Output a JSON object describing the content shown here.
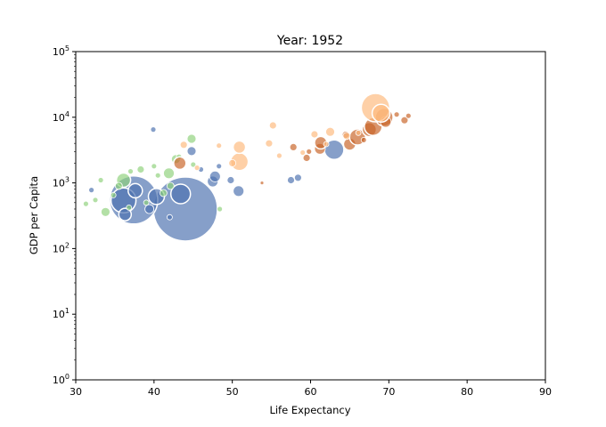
{
  "chart_data": {
    "type": "scatter",
    "title": "Year: 1952",
    "xlabel": "Life Expectancy",
    "ylabel": "GDP per Capita",
    "xlim": [
      30,
      90
    ],
    "ylim": [
      1,
      100000
    ],
    "yscale": "log",
    "grid": false,
    "legend": "none",
    "x_ticks": [
      "30",
      "40",
      "50",
      "60",
      "70",
      "80",
      "90"
    ],
    "y_ticks": [
      {
        "base": "10",
        "exp": "0"
      },
      {
        "base": "10",
        "exp": "1"
      },
      {
        "base": "10",
        "exp": "2"
      },
      {
        "base": "10",
        "exp": "3"
      },
      {
        "base": "10",
        "exp": "4"
      },
      {
        "base": "10",
        "exp": "5"
      }
    ],
    "colors": {
      "Asia": "#4c72b0",
      "Africa": "#8fd17c",
      "Europe": "#c86428",
      "Americas": "#fdb97d"
    },
    "points": [
      {
        "x": 44.0,
        "y": 400,
        "r": 36,
        "group": "Asia"
      },
      {
        "x": 37.4,
        "y": 550,
        "r": 27,
        "group": "Asia"
      },
      {
        "x": 36.1,
        "y": 540,
        "r": 14,
        "group": "Asia"
      },
      {
        "x": 37.6,
        "y": 760,
        "r": 8,
        "group": "Asia"
      },
      {
        "x": 36.3,
        "y": 330,
        "r": 7,
        "group": "Asia"
      },
      {
        "x": 40.3,
        "y": 620,
        "r": 9,
        "group": "Asia"
      },
      {
        "x": 43.4,
        "y": 680,
        "r": 11,
        "group": "Asia"
      },
      {
        "x": 39.4,
        "y": 400,
        "r": 5,
        "group": "Asia"
      },
      {
        "x": 47.5,
        "y": 1050,
        "r": 6,
        "group": "Asia"
      },
      {
        "x": 47.8,
        "y": 1250,
        "r": 6,
        "group": "Asia"
      },
      {
        "x": 50.8,
        "y": 750,
        "r": 6,
        "group": "Asia"
      },
      {
        "x": 44.8,
        "y": 3050,
        "r": 5,
        "group": "Asia"
      },
      {
        "x": 49.8,
        "y": 1100,
        "r": 4,
        "group": "Asia"
      },
      {
        "x": 63.0,
        "y": 3200,
        "r": 11,
        "group": "Asia"
      },
      {
        "x": 57.5,
        "y": 1100,
        "r": 4,
        "group": "Asia"
      },
      {
        "x": 58.4,
        "y": 1200,
        "r": 4,
        "group": "Asia"
      },
      {
        "x": 39.9,
        "y": 6500,
        "r": 3,
        "group": "Asia"
      },
      {
        "x": 46.0,
        "y": 1600,
        "r": 3,
        "group": "Asia"
      },
      {
        "x": 48.3,
        "y": 1800,
        "r": 3,
        "group": "Asia"
      },
      {
        "x": 32.0,
        "y": 780,
        "r": 3,
        "group": "Asia"
      },
      {
        "x": 42.0,
        "y": 300,
        "r": 3,
        "group": "Asia"
      },
      {
        "x": 36.1,
        "y": 1100,
        "r": 8,
        "group": "Africa"
      },
      {
        "x": 41.9,
        "y": 1400,
        "r": 6,
        "group": "Africa"
      },
      {
        "x": 42.8,
        "y": 2300,
        "r": 5,
        "group": "Africa"
      },
      {
        "x": 44.8,
        "y": 4700,
        "r": 5,
        "group": "Africa"
      },
      {
        "x": 38.3,
        "y": 1600,
        "r": 4,
        "group": "Africa"
      },
      {
        "x": 33.8,
        "y": 360,
        "r": 5,
        "group": "Africa"
      },
      {
        "x": 31.3,
        "y": 480,
        "r": 3,
        "group": "Africa"
      },
      {
        "x": 35.5,
        "y": 900,
        "r": 4,
        "group": "Africa"
      },
      {
        "x": 41.2,
        "y": 700,
        "r": 4,
        "group": "Africa"
      },
      {
        "x": 40.5,
        "y": 1300,
        "r": 3,
        "group": "Africa"
      },
      {
        "x": 42.1,
        "y": 900,
        "r": 4,
        "group": "Africa"
      },
      {
        "x": 33.2,
        "y": 1100,
        "r": 3,
        "group": "Africa"
      },
      {
        "x": 39.0,
        "y": 500,
        "r": 3,
        "group": "Africa"
      },
      {
        "x": 37.0,
        "y": 1500,
        "r": 3,
        "group": "Africa"
      },
      {
        "x": 43.2,
        "y": 2500,
        "r": 3,
        "group": "Africa"
      },
      {
        "x": 48.4,
        "y": 400,
        "r": 3,
        "group": "Africa"
      },
      {
        "x": 34.8,
        "y": 650,
        "r": 3,
        "group": "Africa"
      },
      {
        "x": 32.5,
        "y": 550,
        "r": 3,
        "group": "Africa"
      },
      {
        "x": 36.8,
        "y": 420,
        "r": 3,
        "group": "Africa"
      },
      {
        "x": 40.0,
        "y": 1800,
        "r": 3,
        "group": "Africa"
      },
      {
        "x": 45.0,
        "y": 1900,
        "r": 3,
        "group": "Africa"
      },
      {
        "x": 43.3,
        "y": 2000,
        "r": 7,
        "group": "Europe"
      },
      {
        "x": 61.2,
        "y": 3300,
        "r": 6,
        "group": "Europe"
      },
      {
        "x": 61.3,
        "y": 4100,
        "r": 7,
        "group": "Europe"
      },
      {
        "x": 65.0,
        "y": 3900,
        "r": 7,
        "group": "Europe"
      },
      {
        "x": 66.0,
        "y": 5000,
        "r": 9,
        "group": "Europe"
      },
      {
        "x": 67.5,
        "y": 6500,
        "r": 8,
        "group": "Europe"
      },
      {
        "x": 68.0,
        "y": 7200,
        "r": 10,
        "group": "Europe"
      },
      {
        "x": 69.4,
        "y": 10000,
        "r": 10,
        "group": "Europe"
      },
      {
        "x": 69.6,
        "y": 8500,
        "r": 6,
        "group": "Europe"
      },
      {
        "x": 72.0,
        "y": 9000,
        "r": 4,
        "group": "Europe"
      },
      {
        "x": 72.5,
        "y": 10500,
        "r": 3,
        "group": "Europe"
      },
      {
        "x": 71.0,
        "y": 11000,
        "r": 3,
        "group": "Europe"
      },
      {
        "x": 64.5,
        "y": 5400,
        "r": 4,
        "group": "Europe"
      },
      {
        "x": 59.5,
        "y": 2400,
        "r": 4,
        "group": "Europe"
      },
      {
        "x": 59.8,
        "y": 3000,
        "r": 3,
        "group": "Europe"
      },
      {
        "x": 57.8,
        "y": 3500,
        "r": 4,
        "group": "Europe"
      },
      {
        "x": 53.8,
        "y": 1000,
        "r": 2,
        "group": "Europe"
      },
      {
        "x": 66.8,
        "y": 4500,
        "r": 3,
        "group": "Europe"
      },
      {
        "x": 68.3,
        "y": 14000,
        "r": 16,
        "group": "Americas"
      },
      {
        "x": 69.0,
        "y": 11500,
        "r": 10,
        "group": "Americas"
      },
      {
        "x": 50.9,
        "y": 2100,
        "r": 10,
        "group": "Americas"
      },
      {
        "x": 50.9,
        "y": 3500,
        "r": 7,
        "group": "Americas"
      },
      {
        "x": 62.5,
        "y": 6000,
        "r": 5,
        "group": "Americas"
      },
      {
        "x": 54.7,
        "y": 4000,
        "r": 4,
        "group": "Americas"
      },
      {
        "x": 55.2,
        "y": 7500,
        "r": 4,
        "group": "Americas"
      },
      {
        "x": 60.5,
        "y": 5500,
        "r": 4,
        "group": "Americas"
      },
      {
        "x": 64.6,
        "y": 5200,
        "r": 4,
        "group": "Americas"
      },
      {
        "x": 66.1,
        "y": 5800,
        "r": 3,
        "group": "Americas"
      },
      {
        "x": 59.0,
        "y": 2900,
        "r": 3,
        "group": "Americas"
      },
      {
        "x": 43.8,
        "y": 3800,
        "r": 4,
        "group": "Americas"
      },
      {
        "x": 48.3,
        "y": 3700,
        "r": 3,
        "group": "Americas"
      },
      {
        "x": 56.0,
        "y": 2600,
        "r": 3,
        "group": "Americas"
      },
      {
        "x": 62.0,
        "y": 3900,
        "r": 3,
        "group": "Americas"
      },
      {
        "x": 50.0,
        "y": 2000,
        "r": 4,
        "group": "Americas"
      },
      {
        "x": 45.5,
        "y": 1700,
        "r": 3,
        "group": "Americas"
      }
    ]
  }
}
